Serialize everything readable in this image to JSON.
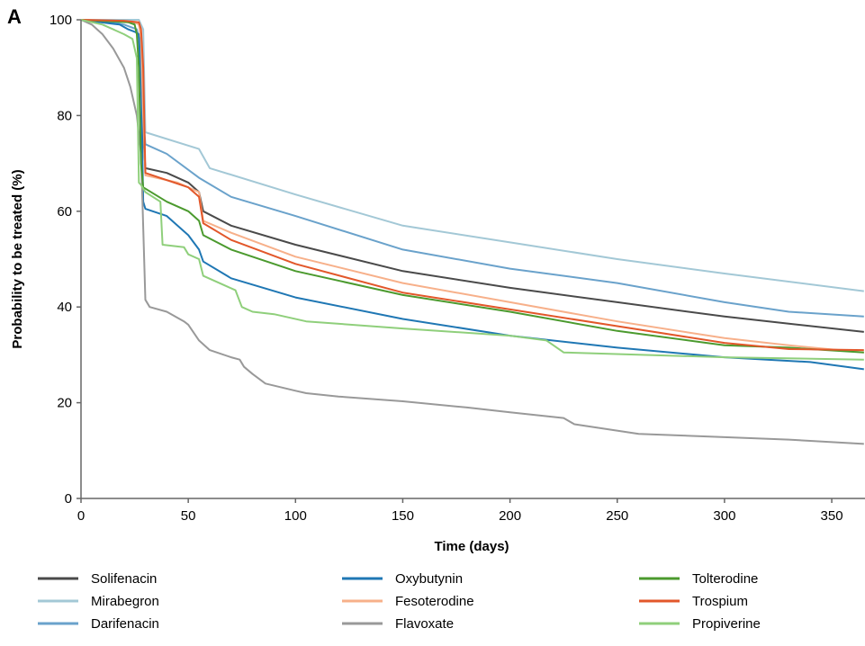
{
  "panel_label": "A",
  "chart_data": {
    "type": "line",
    "xlabel": "Time (days)",
    "ylabel": "Probability to be treated (%)",
    "xlim": [
      0,
      365
    ],
    "ylim": [
      0,
      100
    ],
    "xticks": [
      0,
      50,
      100,
      150,
      200,
      250,
      300,
      350
    ],
    "yticks": [
      0,
      20,
      40,
      60,
      80,
      100
    ],
    "grid": false,
    "legend_position": "bottom",
    "series": [
      {
        "name": "Solifenacin",
        "color": "#4a4a4a",
        "points": [
          [
            0,
            100
          ],
          [
            20,
            99.6
          ],
          [
            27,
            99.3
          ],
          [
            28,
            97
          ],
          [
            29,
            76
          ],
          [
            30,
            69
          ],
          [
            40,
            68
          ],
          [
            50,
            66
          ],
          [
            55,
            64
          ],
          [
            57,
            60
          ],
          [
            70,
            57
          ],
          [
            100,
            53
          ],
          [
            150,
            47.5
          ],
          [
            200,
            44
          ],
          [
            250,
            41
          ],
          [
            300,
            38
          ],
          [
            330,
            36.5
          ],
          [
            365,
            34.8
          ]
        ]
      },
      {
        "name": "Mirabegron",
        "color": "#a3c8d6",
        "points": [
          [
            0,
            100
          ],
          [
            27,
            100
          ],
          [
            28,
            99
          ],
          [
            29,
            98
          ],
          [
            30,
            76.5
          ],
          [
            55,
            73
          ],
          [
            60,
            69
          ],
          [
            100,
            63.5
          ],
          [
            150,
            57
          ],
          [
            200,
            53.5
          ],
          [
            250,
            50
          ],
          [
            300,
            47
          ],
          [
            365,
            43.3
          ]
        ]
      },
      {
        "name": "Darifenacin",
        "color": "#6aa2cb",
        "points": [
          [
            0,
            100
          ],
          [
            15,
            99.5
          ],
          [
            20,
            99
          ],
          [
            26,
            98
          ],
          [
            27,
            96
          ],
          [
            28,
            86
          ],
          [
            30,
            74
          ],
          [
            40,
            72
          ],
          [
            55,
            67
          ],
          [
            70,
            63
          ],
          [
            100,
            59
          ],
          [
            150,
            52
          ],
          [
            200,
            48
          ],
          [
            250,
            45
          ],
          [
            300,
            41
          ],
          [
            330,
            39
          ],
          [
            365,
            38
          ]
        ]
      },
      {
        "name": "Oxybutynin",
        "color": "#1f77b4",
        "points": [
          [
            0,
            100
          ],
          [
            18,
            99
          ],
          [
            22,
            98
          ],
          [
            25,
            97.5
          ],
          [
            27,
            97
          ],
          [
            28,
            88
          ],
          [
            29,
            62
          ],
          [
            30,
            60.5
          ],
          [
            40,
            59
          ],
          [
            50,
            55
          ],
          [
            55,
            52
          ],
          [
            57,
            49.5
          ],
          [
            70,
            46
          ],
          [
            100,
            42
          ],
          [
            150,
            37.5
          ],
          [
            200,
            34
          ],
          [
            250,
            31.5
          ],
          [
            300,
            29.5
          ],
          [
            340,
            28.5
          ],
          [
            365,
            27
          ]
        ]
      },
      {
        "name": "Fesoterodine",
        "color": "#f7b08a",
        "points": [
          [
            0,
            100
          ],
          [
            25,
            99.5
          ],
          [
            27,
            99
          ],
          [
            28,
            96
          ],
          [
            29,
            80
          ],
          [
            30,
            67.5
          ],
          [
            45,
            66
          ],
          [
            55,
            64
          ],
          [
            57,
            58
          ],
          [
            70,
            55.5
          ],
          [
            100,
            50.5
          ],
          [
            150,
            45
          ],
          [
            200,
            41
          ],
          [
            250,
            37
          ],
          [
            300,
            33.5
          ],
          [
            330,
            32
          ],
          [
            365,
            30.5
          ]
        ]
      },
      {
        "name": "Flavoxate",
        "color": "#999999",
        "points": [
          [
            0,
            100
          ],
          [
            5,
            99
          ],
          [
            10,
            97
          ],
          [
            15,
            94
          ],
          [
            20,
            90
          ],
          [
            23,
            86
          ],
          [
            26,
            80
          ],
          [
            28,
            72
          ],
          [
            30,
            41.5
          ],
          [
            32,
            40
          ],
          [
            40,
            39
          ],
          [
            48,
            37
          ],
          [
            50,
            36.3
          ],
          [
            55,
            33
          ],
          [
            60,
            31
          ],
          [
            70,
            29.5
          ],
          [
            74,
            29
          ],
          [
            76,
            27.5
          ],
          [
            80,
            26
          ],
          [
            86,
            24
          ],
          [
            100,
            22.5
          ],
          [
            105,
            22
          ],
          [
            120,
            21.3
          ],
          [
            150,
            20.3
          ],
          [
            180,
            19
          ],
          [
            200,
            18
          ],
          [
            225,
            16.8
          ],
          [
            230,
            15.5
          ],
          [
            260,
            13.5
          ],
          [
            300,
            12.8
          ],
          [
            330,
            12.3
          ],
          [
            365,
            11.4
          ]
        ]
      },
      {
        "name": "Tolterodine",
        "color": "#4b9a2e",
        "points": [
          [
            0,
            100
          ],
          [
            22,
            99.5
          ],
          [
            25,
            99
          ],
          [
            26,
            97
          ],
          [
            27,
            90
          ],
          [
            28,
            70
          ],
          [
            29,
            65
          ],
          [
            40,
            62
          ],
          [
            50,
            60
          ],
          [
            55,
            58
          ],
          [
            57,
            55
          ],
          [
            70,
            52
          ],
          [
            100,
            47.5
          ],
          [
            150,
            42.5
          ],
          [
            200,
            39
          ],
          [
            250,
            35
          ],
          [
            300,
            32
          ],
          [
            330,
            31.5
          ],
          [
            365,
            30.5
          ]
        ]
      },
      {
        "name": "Trospium",
        "color": "#e2572a",
        "points": [
          [
            0,
            100
          ],
          [
            20,
            99.8
          ],
          [
            27,
            99.5
          ],
          [
            28,
            98
          ],
          [
            29,
            90
          ],
          [
            30,
            68
          ],
          [
            40,
            66.5
          ],
          [
            50,
            65
          ],
          [
            55,
            63
          ],
          [
            57,
            57.5
          ],
          [
            70,
            54
          ],
          [
            100,
            49
          ],
          [
            150,
            43
          ],
          [
            200,
            39.5
          ],
          [
            250,
            36
          ],
          [
            300,
            32.5
          ],
          [
            330,
            31.2
          ],
          [
            365,
            31
          ]
        ]
      },
      {
        "name": "Propiverine",
        "color": "#8fcf7b",
        "points": [
          [
            0,
            100
          ],
          [
            10,
            99
          ],
          [
            15,
            98
          ],
          [
            20,
            97
          ],
          [
            24,
            96
          ],
          [
            25,
            94
          ],
          [
            26,
            92
          ],
          [
            27,
            66
          ],
          [
            28,
            65.5
          ],
          [
            30,
            64
          ],
          [
            37,
            62
          ],
          [
            38,
            53
          ],
          [
            48,
            52.5
          ],
          [
            50,
            51
          ],
          [
            55,
            50
          ],
          [
            57,
            46.5
          ],
          [
            72,
            43.5
          ],
          [
            75,
            40
          ],
          [
            80,
            39
          ],
          [
            90,
            38.5
          ],
          [
            105,
            37
          ],
          [
            150,
            35.5
          ],
          [
            200,
            34
          ],
          [
            217,
            33
          ],
          [
            225,
            30.5
          ],
          [
            300,
            29.5
          ],
          [
            365,
            29
          ]
        ]
      }
    ]
  }
}
